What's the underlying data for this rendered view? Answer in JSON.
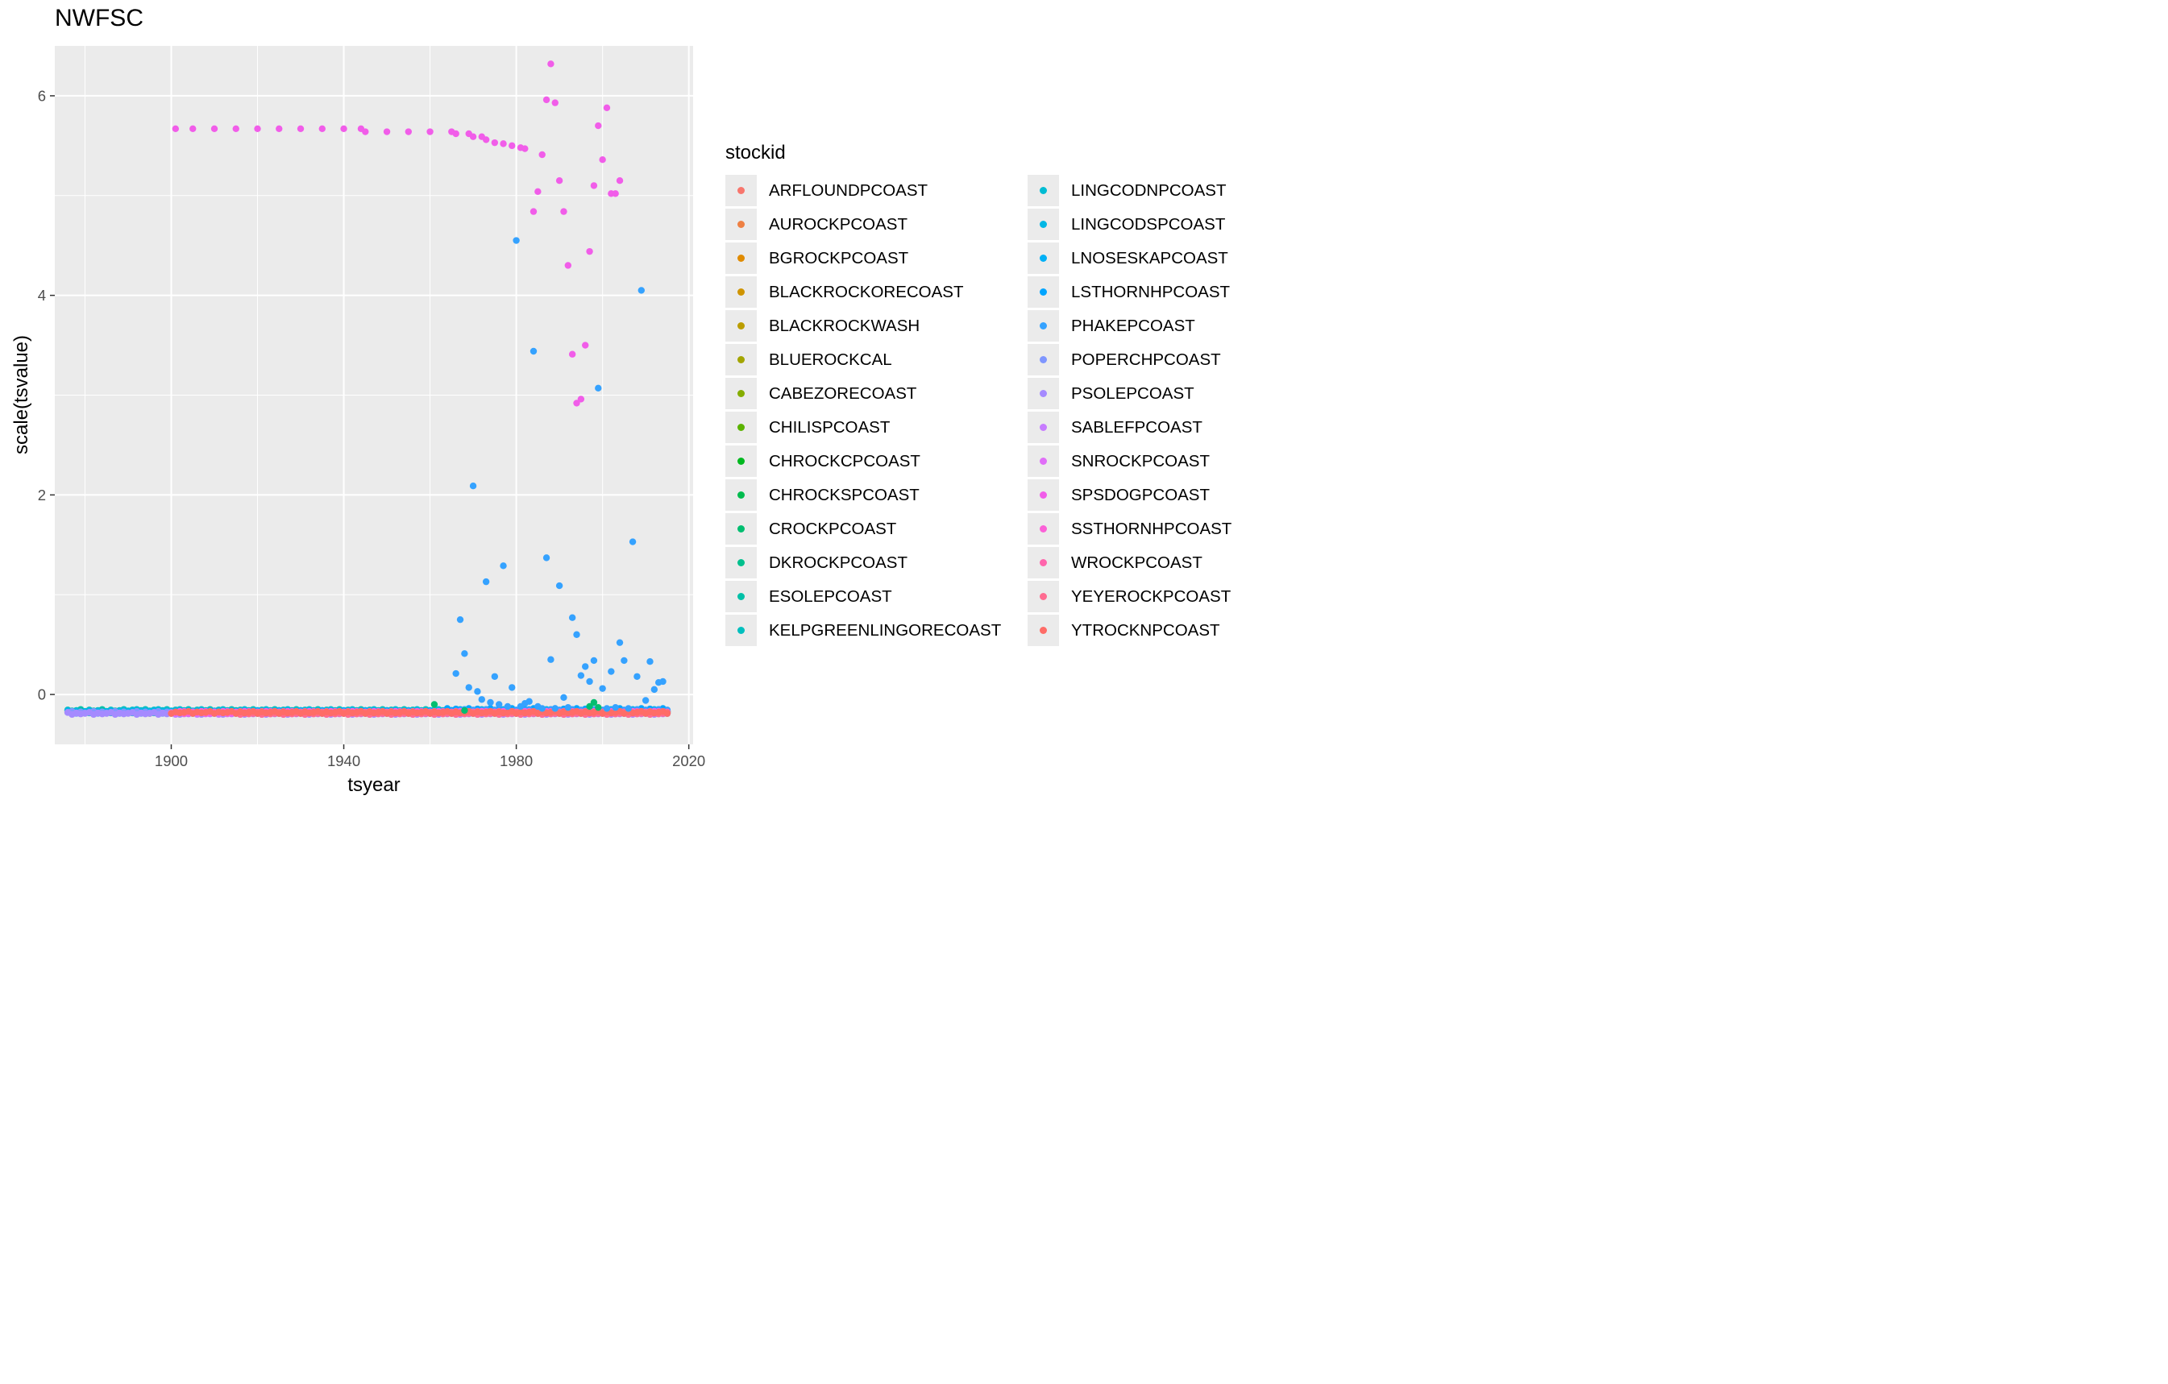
{
  "chart_data": {
    "type": "scatter",
    "title": "NWFSC",
    "xlabel": "tsyear",
    "ylabel": "scale(tsvalue)",
    "xlim": [
      1873,
      2021
    ],
    "ylim": [
      -0.5,
      6.5
    ],
    "x_ticks": [
      1900,
      1940,
      1980,
      2020
    ],
    "y_ticks": [
      0,
      2,
      4,
      6
    ],
    "grid": true,
    "legend_title": "stockid",
    "legend_position": "right",
    "series": [
      {
        "name": "ARFLOUNDPCOAST",
        "color": "#F8766D",
        "start": 1876,
        "end": 2015,
        "base": -0.18
      },
      {
        "name": "AUROCKPCOAST",
        "color": "#EE8043",
        "start": 1916,
        "end": 2015,
        "base": -0.18
      },
      {
        "name": "BGROCKPCOAST",
        "color": "#E08B00",
        "start": 1916,
        "end": 2015,
        "base": -0.18
      },
      {
        "name": "BLACKROCKORECOAST",
        "color": "#CF9400",
        "start": 1915,
        "end": 2015,
        "base": -0.18
      },
      {
        "name": "BLACKROCKWASH",
        "color": "#BB9D00",
        "start": 1940,
        "end": 2015,
        "base": -0.18
      },
      {
        "name": "BLUEROCKCAL",
        "color": "#A3A500",
        "start": 1916,
        "end": 2015,
        "base": -0.18
      },
      {
        "name": "CABEZORECOAST",
        "color": "#85AD00",
        "start": 1916,
        "end": 2015,
        "base": -0.18
      },
      {
        "name": "CHILISPCOAST",
        "color": "#5BB300",
        "start": 1892,
        "end": 2015,
        "base": -0.18
      },
      {
        "name": "CHROCKCPCOAST",
        "color": "#00B81F",
        "start": 1900,
        "end": 2015,
        "base": -0.18
      },
      {
        "name": "CHROCKSPCOAST",
        "color": "#00BB4E",
        "start": 1900,
        "end": 2015,
        "base": -0.18
      },
      {
        "name": "CROCKPCOAST",
        "color": "#00BE70",
        "start": 1876,
        "end": 2015,
        "base": -0.17
      },
      {
        "name": "DKROCKPCOAST",
        "color": "#00C08D",
        "start": 1915,
        "end": 2015,
        "base": -0.17
      },
      {
        "name": "ESOLEPCOAST",
        "color": "#00C0A7",
        "start": 1876,
        "end": 2015,
        "base": -0.16
      },
      {
        "name": "KELPGREENLINGORECOAST",
        "color": "#00BFBE",
        "start": 1880,
        "end": 2015,
        "base": -0.18
      },
      {
        "name": "LINGCODNPCOAST",
        "color": "#00BCD3",
        "start": 1889,
        "end": 2015,
        "base": -0.16
      },
      {
        "name": "LINGCODSPCOAST",
        "color": "#00B7E5",
        "start": 1876,
        "end": 2015,
        "base": -0.17
      },
      {
        "name": "LNOSESKAPCOAST",
        "color": "#00B0F6",
        "start": 1916,
        "end": 2015,
        "base": -0.17
      },
      {
        "name": "LSTHORNHPCOAST",
        "color": "#00A5FF",
        "start": 1964,
        "end": 2015,
        "base": -0.15
      },
      {
        "name": "PHAKEPCOAST",
        "color": "#35A2FF",
        "start": 1966,
        "end": 2015,
        "base": -0.16
      },
      {
        "name": "POPERCHPCOAST",
        "color": "#7F96FF",
        "start": 1876,
        "end": 2015,
        "base": -0.18
      },
      {
        "name": "PSOLEPCOAST",
        "color": "#A58AFF",
        "start": 1876,
        "end": 2015,
        "base": -0.19
      },
      {
        "name": "SABLEFPCOAST",
        "color": "#C77CFF",
        "start": 1900,
        "end": 2015,
        "base": -0.19
      },
      {
        "name": "SNROCKPCOAST",
        "color": "#E06EF8",
        "start": 1916,
        "end": 2015,
        "base": -0.18
      },
      {
        "name": "SPSDOGPCOAST",
        "color": "#F15DE9",
        "start": 1901,
        "end": 2015,
        "base": -0.18
      },
      {
        "name": "SSTHORNHPCOAST",
        "color": "#FB61D7",
        "start": 1901,
        "end": 2015,
        "base": -0.18
      },
      {
        "name": "WROCKPCOAST",
        "color": "#FF65AC",
        "start": 1916,
        "end": 2015,
        "base": -0.18
      },
      {
        "name": "YEYEROCKPCOAST",
        "color": "#FF6C91",
        "start": 1916,
        "end": 2015,
        "base": -0.19
      },
      {
        "name": "YTROCKNPCOAST",
        "color": "#FF6C67",
        "start": 1900,
        "end": 2015,
        "base": -0.18
      }
    ],
    "highlight_points": [
      {
        "series": "SPSDOGPCOAST",
        "points": [
          [
            1901,
            5.67
          ],
          [
            1905,
            5.67
          ],
          [
            1910,
            5.67
          ],
          [
            1915,
            5.67
          ],
          [
            1920,
            5.67
          ],
          [
            1925,
            5.67
          ],
          [
            1930,
            5.67
          ],
          [
            1935,
            5.67
          ],
          [
            1940,
            5.67
          ],
          [
            1944,
            5.67
          ],
          [
            1945,
            5.64
          ],
          [
            1950,
            5.64
          ],
          [
            1955,
            5.64
          ],
          [
            1960,
            5.64
          ],
          [
            1965,
            5.64
          ],
          [
            1966,
            5.62
          ],
          [
            1969,
            5.62
          ],
          [
            1970,
            5.59
          ],
          [
            1972,
            5.59
          ],
          [
            1973,
            5.56
          ],
          [
            1975,
            5.53
          ],
          [
            1977,
            5.52
          ],
          [
            1979,
            5.5
          ],
          [
            1981,
            5.48
          ],
          [
            1982,
            5.47
          ],
          [
            1984,
            4.84
          ],
          [
            1985,
            5.04
          ],
          [
            1986,
            5.41
          ],
          [
            1987,
            5.96
          ],
          [
            1988,
            6.32
          ],
          [
            1989,
            5.93
          ],
          [
            1990,
            5.15
          ],
          [
            1991,
            4.84
          ],
          [
            1992,
            4.3
          ],
          [
            1993,
            3.41
          ],
          [
            1994,
            2.92
          ],
          [
            1995,
            2.96
          ],
          [
            1996,
            3.5
          ],
          [
            1997,
            4.44
          ],
          [
            1998,
            5.1
          ],
          [
            1999,
            5.7
          ],
          [
            2000,
            5.36
          ],
          [
            2001,
            5.88
          ],
          [
            2002,
            5.02
          ],
          [
            2003,
            5.02
          ],
          [
            2004,
            5.15
          ]
        ]
      },
      {
        "series": "PHAKEPCOAST",
        "points": [
          [
            1966,
            0.21
          ],
          [
            1967,
            0.75
          ],
          [
            1968,
            0.41
          ],
          [
            1969,
            0.07
          ],
          [
            1970,
            2.09
          ],
          [
            1971,
            0.03
          ],
          [
            1972,
            -0.05
          ],
          [
            1973,
            1.13
          ],
          [
            1974,
            -0.08
          ],
          [
            1975,
            0.18
          ],
          [
            1976,
            -0.1
          ],
          [
            1977,
            1.29
          ],
          [
            1978,
            -0.12
          ],
          [
            1979,
            0.07
          ],
          [
            1980,
            4.55
          ],
          [
            1981,
            -0.12
          ],
          [
            1982,
            -0.09
          ],
          [
            1983,
            -0.07
          ],
          [
            1984,
            3.44
          ],
          [
            1985,
            -0.12
          ],
          [
            1986,
            -0.14
          ],
          [
            1987,
            1.37
          ],
          [
            1988,
            0.35
          ],
          [
            1989,
            -0.14
          ],
          [
            1990,
            1.09
          ],
          [
            1991,
            -0.03
          ],
          [
            1992,
            -0.13
          ],
          [
            1993,
            0.77
          ],
          [
            1994,
            0.6
          ],
          [
            1995,
            0.19
          ],
          [
            1996,
            0.28
          ],
          [
            1997,
            0.13
          ],
          [
            1998,
            0.34
          ],
          [
            1999,
            3.07
          ],
          [
            2000,
            0.06
          ],
          [
            2001,
            -0.14
          ],
          [
            2002,
            0.23
          ],
          [
            2003,
            -0.13
          ],
          [
            2004,
            0.52
          ],
          [
            2005,
            0.34
          ],
          [
            2006,
            -0.14
          ],
          [
            2007,
            1.53
          ],
          [
            2008,
            0.18
          ],
          [
            2009,
            4.05
          ],
          [
            2010,
            -0.06
          ],
          [
            2011,
            0.33
          ],
          [
            2012,
            0.05
          ],
          [
            2013,
            0.12
          ],
          [
            2014,
            0.13
          ]
        ]
      },
      {
        "series": "CROCKPCOAST",
        "points": [
          [
            1961,
            -0.1
          ],
          [
            1968,
            -0.16
          ],
          [
            1998,
            -0.08
          ],
          [
            1997,
            -0.12
          ],
          [
            1999,
            -0.13
          ]
        ]
      }
    ]
  }
}
